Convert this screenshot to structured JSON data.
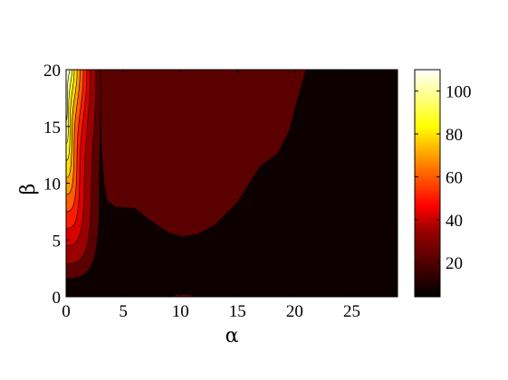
{
  "chart_data": {
    "type": "heatmap",
    "subtype": "filled-contour",
    "title": "",
    "xlabel": "α",
    "ylabel": "β",
    "xlim": [
      0,
      29
    ],
    "ylim": [
      0,
      20
    ],
    "xticks": [
      0,
      5,
      10,
      15,
      20,
      25
    ],
    "yticks": [
      0,
      5,
      10,
      15,
      20
    ],
    "grid": false,
    "colormap": "hot",
    "colorbar": {
      "range": [
        4,
        110
      ],
      "ticks": [
        20,
        40,
        60,
        80,
        100
      ],
      "colors": [
        "#000000",
        "#a00000",
        "#ff0000",
        "#ff8000",
        "#ffff00",
        "#ffffff"
      ]
    },
    "contour_levels": [
      4,
      10,
      20,
      30,
      40,
      50,
      60,
      70,
      80,
      90,
      100,
      110
    ],
    "regions": [
      {
        "level": 10,
        "boundary": [
          [
            3.0,
            20
          ],
          [
            3.0,
            17
          ],
          [
            3.1,
            13
          ],
          [
            3.3,
            10
          ],
          [
            3.6,
            8.4
          ],
          [
            4.3,
            7.9
          ],
          [
            6.0,
            7.8
          ],
          [
            7.5,
            6.6
          ],
          [
            9.0,
            5.6
          ],
          [
            10.2,
            5.3
          ],
          [
            11.5,
            5.5
          ],
          [
            13.0,
            6.3
          ],
          [
            15.0,
            8.3
          ],
          [
            17.0,
            11.5
          ],
          [
            18.5,
            12.6
          ],
          [
            19.5,
            14.5
          ],
          [
            20.3,
            17.5
          ],
          [
            21.0,
            20
          ]
        ]
      },
      {
        "level": 10,
        "boundary": [
          [
            9.3,
            0
          ],
          [
            9.6,
            0.18
          ],
          [
            10.3,
            0.22
          ],
          [
            11.0,
            0.15
          ],
          [
            11.3,
            0
          ]
        ]
      }
    ],
    "left_edge_bands": [
      {
        "level": 10,
        "x_at_top": 3.0,
        "x_at_mid": 2.9,
        "y_bottom": 1.6
      },
      {
        "level": 20,
        "x_at_top": 2.6,
        "x_at_mid": 2.2,
        "y_bottom": 2.9
      },
      {
        "level": 30,
        "x_at_top": 2.1,
        "x_at_mid": 1.6,
        "y_bottom": 4.5
      },
      {
        "level": 40,
        "x_at_top": 1.8,
        "x_at_mid": 1.2,
        "y_bottom": 6.0
      },
      {
        "level": 50,
        "x_at_top": 1.5,
        "x_at_mid": 0.95,
        "y_bottom": 7.5
      },
      {
        "level": 60,
        "x_at_top": 1.2,
        "x_at_mid": 0.7,
        "y_bottom": 9.0
      },
      {
        "level": 70,
        "x_at_top": 0.95,
        "x_at_mid": 0.5,
        "y_bottom": 10.5
      },
      {
        "level": 80,
        "x_at_top": 0.7,
        "x_at_mid": 0.35,
        "y_bottom": 12.0
      },
      {
        "level": 90,
        "x_at_top": 0.5,
        "x_at_mid": 0.22,
        "y_bottom": 13.5
      },
      {
        "level": 100,
        "x_at_top": 0.3,
        "x_at_mid": 0.12,
        "y_bottom": 15.5
      }
    ]
  }
}
